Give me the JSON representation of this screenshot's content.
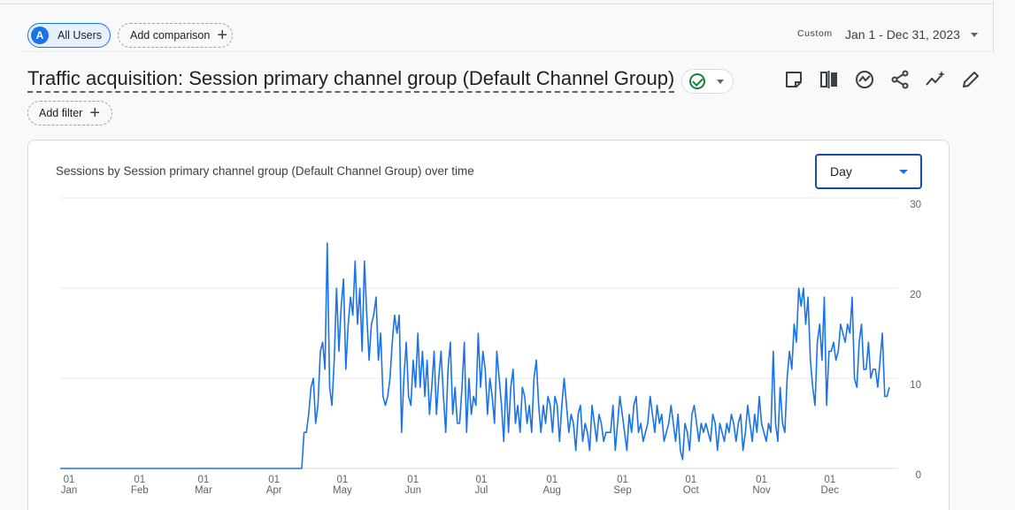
{
  "header": {
    "segment_label": "All Users",
    "segment_avatar": "A",
    "add_comparison_label": "Add comparison",
    "date_custom_label": "Custom",
    "date_range": "Jan 1 - Dec 31, 2023"
  },
  "report": {
    "title": "Traffic acquisition: Session primary channel group (Default Channel Group)",
    "add_filter_label": "Add filter",
    "toolbar_icons": [
      "note-icon",
      "compare-columns-icon",
      "insights-icon",
      "share-icon",
      "trend-sparkle-icon",
      "edit-pencil-icon"
    ]
  },
  "card": {
    "title": "Sessions by Session primary channel group (Default Channel Group) over time",
    "granularity": "Day"
  },
  "colors": {
    "accent": "#1a73e8",
    "line": "#1a73e8",
    "grid": "#e8eaed"
  },
  "chart_data": {
    "type": "line",
    "title": "Sessions by Session primary channel group (Default Channel Group) over time",
    "x_start": "2023-01-01",
    "x_end": "2023-12-31",
    "ylim": [
      0,
      30
    ],
    "y_ticks": [
      "0",
      "10",
      "20",
      "30"
    ],
    "y_axis_side": "right",
    "grid": true,
    "x_tick_labels": [
      {
        "day": "01",
        "month": "Jan"
      },
      {
        "day": "01",
        "month": "Feb"
      },
      {
        "day": "01",
        "month": "Mar"
      },
      {
        "day": "01",
        "month": "Apr"
      },
      {
        "day": "01",
        "month": "May"
      },
      {
        "day": "01",
        "month": "Jun"
      },
      {
        "day": "01",
        "month": "Jul"
      },
      {
        "day": "01",
        "month": "Aug"
      },
      {
        "day": "01",
        "month": "Sep"
      },
      {
        "day": "01",
        "month": "Oct"
      },
      {
        "day": "01",
        "month": "Nov"
      },
      {
        "day": "01",
        "month": "Dec"
      }
    ],
    "series": [
      {
        "values": [
          0,
          0,
          0,
          0,
          0,
          0,
          0,
          0,
          0,
          0,
          0,
          0,
          0,
          0,
          0,
          0,
          0,
          0,
          0,
          0,
          0,
          0,
          0,
          0,
          0,
          0,
          0,
          0,
          0,
          0,
          0,
          0,
          0,
          0,
          0,
          0,
          0,
          0,
          0,
          0,
          0,
          0,
          0,
          0,
          0,
          0,
          0,
          0,
          0,
          0,
          0,
          0,
          0,
          0,
          0,
          0,
          0,
          0,
          0,
          0,
          0,
          0,
          0,
          0,
          0,
          0,
          0,
          0,
          0,
          0,
          0,
          0,
          0,
          0,
          0,
          0,
          0,
          0,
          0,
          0,
          0,
          0,
          0,
          0,
          0,
          0,
          0,
          0,
          0,
          0,
          0,
          0,
          0,
          0,
          0,
          0,
          0,
          0,
          0,
          0,
          0,
          0,
          0,
          0,
          0,
          4,
          4,
          6,
          9,
          10,
          5,
          7,
          13,
          14,
          11,
          25,
          9,
          7,
          12,
          20,
          13,
          18,
          21,
          11,
          16,
          19,
          17,
          23,
          16,
          20,
          13,
          23,
          17,
          12,
          16,
          17,
          19,
          12,
          15,
          8,
          7,
          8,
          10,
          14,
          17,
          15,
          17,
          4,
          10,
          14,
          8,
          7,
          12,
          9,
          15,
          9,
          13,
          8,
          12,
          6,
          9,
          13,
          6,
          10,
          13,
          8,
          4,
          11,
          14,
          6,
          9,
          5,
          5,
          9,
          14,
          4,
          10,
          6,
          8,
          7,
          15,
          9,
          13,
          11,
          6,
          10,
          8,
          5,
          13,
          10,
          7,
          3,
          10,
          4,
          9,
          11,
          5,
          7,
          4,
          9,
          8,
          5,
          7,
          4,
          10,
          12,
          7,
          4,
          7,
          5,
          8,
          7,
          4,
          8,
          7,
          3,
          7,
          10,
          7,
          4,
          6,
          5,
          2,
          6,
          7,
          3,
          5,
          4,
          2,
          7,
          5,
          3,
          6,
          5,
          3,
          4,
          4,
          4,
          7,
          2,
          5,
          8,
          6,
          4,
          2,
          6,
          4,
          7,
          8,
          4,
          5,
          3,
          4,
          5,
          8,
          6,
          4,
          7,
          5,
          6,
          3,
          4,
          5,
          7,
          5,
          3,
          6,
          2,
          1,
          5,
          4,
          2,
          6,
          7,
          5,
          3,
          5,
          4,
          5,
          4,
          3,
          6,
          5,
          2,
          5,
          4,
          3,
          5,
          4,
          6,
          5,
          3,
          5,
          6,
          2,
          4,
          7,
          5,
          3,
          6,
          4,
          8,
          5,
          4,
          3,
          5,
          4,
          13,
          5,
          3,
          9,
          5,
          4,
          10,
          13,
          11,
          16,
          14,
          20,
          18,
          20,
          16,
          19,
          12,
          9,
          7,
          14,
          16,
          12,
          19,
          7,
          13,
          13,
          14,
          12,
          13,
          16,
          15,
          14,
          16,
          15,
          19,
          10,
          9,
          14,
          16,
          11,
          11,
          14,
          10,
          11,
          11,
          9,
          12,
          15,
          8,
          8,
          9
        ]
      }
    ]
  }
}
